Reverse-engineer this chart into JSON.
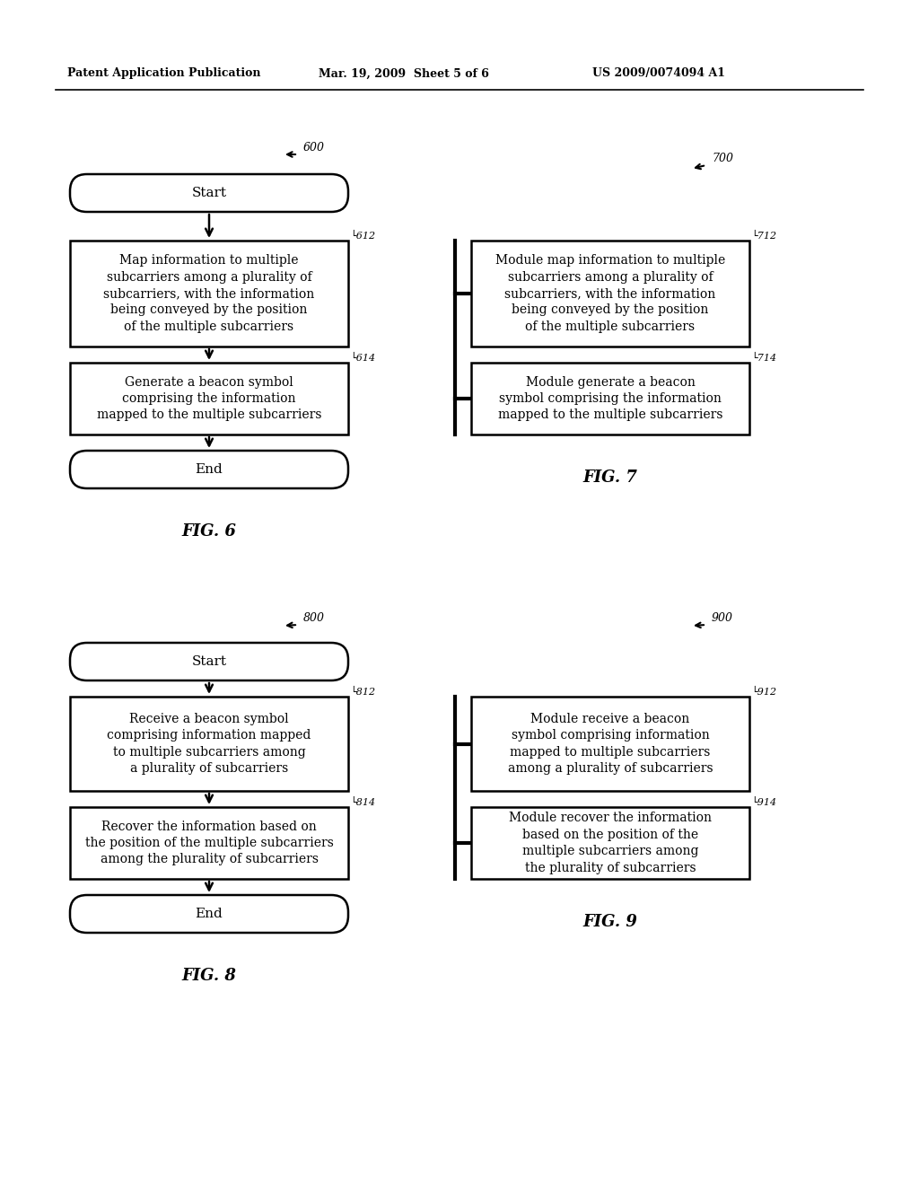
{
  "header_left": "Patent Application Publication",
  "header_mid": "Mar. 19, 2009  Sheet 5 of 6",
  "header_right": "US 2009/0074094 A1",
  "bg_color": "#ffffff",
  "line_color": "#000000",
  "text_color": "#000000",
  "fig6": {
    "ref": "600",
    "fig_label": "FIG. 6",
    "start_text": "Start",
    "end_text": "End",
    "box612_text": "Map information to multiple\nsubcarriers among a plurality of\nsubcarriers, with the information\nbeing conveyed by the position\nof the multiple subcarriers",
    "box614_text": "Generate a beacon symbol\ncomprising the information\nmapped to the multiple subcarriers"
  },
  "fig7": {
    "ref": "700",
    "fig_label": "FIG. 7",
    "box712_text": "Module map information to multiple\nsubcarriers among a plurality of\nsubcarriers, with the information\nbeing conveyed by the position\nof the multiple subcarriers",
    "box714_text": "Module generate a beacon\nsymbol comprising the information\nmapped to the multiple subcarriers"
  },
  "fig8": {
    "ref": "800",
    "fig_label": "FIG. 8",
    "start_text": "Start",
    "end_text": "End",
    "box812_text": "Receive a beacon symbol\ncomprising information mapped\nto multiple subcarriers among\na plurality of subcarriers",
    "box814_text": "Recover the information based on\nthe position of the multiple subcarriers\namong the plurality of subcarriers"
  },
  "fig9": {
    "ref": "900",
    "fig_label": "FIG. 9",
    "box912_text": "Module receive a beacon\nsymbol comprising information\nmapped to multiple subcarriers\namong a plurality of subcarriers",
    "box914_text": "Module recover the information\nbased on the position of the\nmultiple subcarriers among\nthe plurality of subcarriers"
  }
}
